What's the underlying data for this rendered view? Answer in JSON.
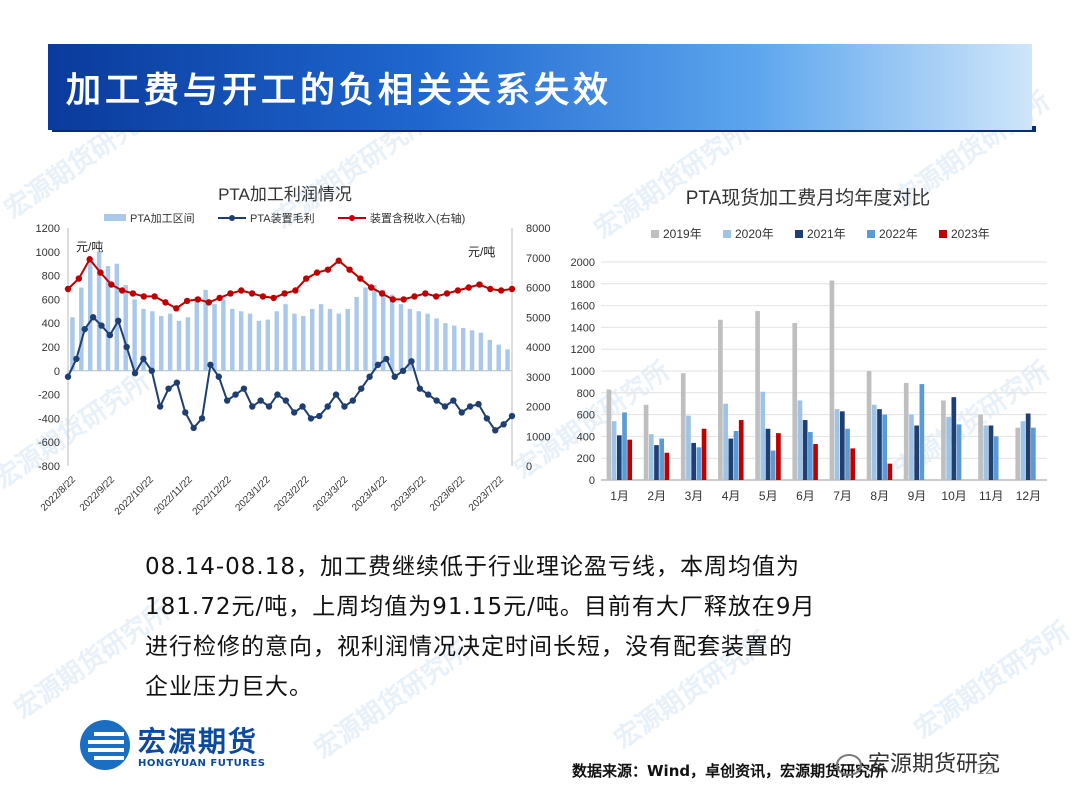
{
  "header": {
    "title": "加工费与开工的负相关关系失效"
  },
  "body": {
    "lines": [
      "08.14-08.18，加工费继续低于行业理论盈亏线，本周均值为",
      "181.72元/吨，上周均值为91.15元/吨。目前有大厂释放在9月",
      "进行检修的意向，视利润情况决定时间长短，没有配套装置的",
      "企业压力巨大。"
    ]
  },
  "footer": {
    "logo_name": "宏源期货",
    "logo_sub": "HONGYUAN FUTURES",
    "source": "数据来源：Wind，卓创资讯，宏源期货研究所",
    "page": "12",
    "wechat": "宏源期货研究"
  },
  "watermark": "宏源期货研究所",
  "colors": {
    "bar_blue": "#a9c8ea",
    "margin_navy": "#1f3f73",
    "income_red": "#c00000",
    "y2019": "#bfbfbf",
    "y2020": "#9dc3e6",
    "y2021": "#1f3f73",
    "y2022": "#5b9bd5",
    "y2023": "#c00000"
  },
  "chart_data": [
    {
      "type": "line",
      "title": "PTA加工利润情况",
      "legend": [
        "PTA加工区间",
        "PTA装置毛利",
        "装置含税收入(右轴)"
      ],
      "legend_position": "top",
      "left_unit": "元/吨",
      "right_unit": "元/吨",
      "y_left_ticks": [
        1200,
        1000,
        800,
        600,
        400,
        200,
        0,
        -200,
        -400,
        -600,
        -800
      ],
      "y_right_ticks": [
        8000,
        7000,
        6000,
        5000,
        4000,
        3000,
        2000,
        1000,
        0
      ],
      "ylim_left": [
        -800,
        1200
      ],
      "ylim_right": [
        0,
        8000
      ],
      "x_ticks": [
        "2022/8/22",
        "2022/9/22",
        "2022/10/22",
        "2022/11/22",
        "2022/12/22",
        "2023/1/22",
        "2023/2/22",
        "2023/3/22",
        "2023/4/22",
        "2023/5/22",
        "2023/6/22",
        "2023/7/22"
      ],
      "grid": false,
      "series": [
        {
          "name": "PTA加工区间",
          "type": "bar",
          "values": [
            450,
            700,
            950,
            1000,
            880,
            900,
            720,
            600,
            520,
            500,
            460,
            480,
            420,
            450,
            620,
            680,
            560,
            600,
            520,
            500,
            480,
            420,
            430,
            500,
            560,
            480,
            460,
            520,
            560,
            520,
            480,
            520,
            620,
            700,
            720,
            680,
            640,
            560,
            520,
            500,
            480,
            440,
            400,
            380,
            360,
            340,
            320,
            260,
            220,
            180
          ]
        },
        {
          "name": "PTA装置毛利",
          "type": "line",
          "values": [
            -50,
            100,
            350,
            450,
            380,
            300,
            420,
            200,
            -20,
            100,
            0,
            -300,
            -150,
            -100,
            -350,
            -480,
            -400,
            50,
            -50,
            -250,
            -200,
            -150,
            -300,
            -250,
            -300,
            -200,
            -250,
            -350,
            -300,
            -400,
            -380,
            -300,
            -200,
            -300,
            -250,
            -150,
            -50,
            50,
            100,
            -50,
            0,
            80,
            -150,
            -200,
            -250,
            -300,
            -250,
            -350,
            -300,
            -280,
            -400,
            -500,
            -450,
            -380
          ]
        },
        {
          "name": "装置含税收入(右轴)",
          "type": "line",
          "values": [
            5950,
            6300,
            6950,
            6500,
            6100,
            5900,
            5800,
            5700,
            5700,
            5500,
            5300,
            5550,
            5600,
            5500,
            5650,
            5800,
            5900,
            5800,
            5700,
            5650,
            5800,
            5900,
            6300,
            6500,
            6600,
            6900,
            6600,
            6300,
            6000,
            5800,
            5600,
            5600,
            5700,
            5800,
            5700,
            5800,
            5900,
            6000,
            6100,
            5950,
            5900,
            5950
          ]
        }
      ]
    },
    {
      "type": "bar",
      "title": "PTA现货加工费月均年度对比",
      "legend_position": "top",
      "categories": [
        "1月",
        "2月",
        "3月",
        "4月",
        "5月",
        "6月",
        "7月",
        "8月",
        "9月",
        "10月",
        "11月",
        "12月"
      ],
      "ylim": [
        0,
        2000
      ],
      "y_ticks": [
        2000,
        1800,
        1600,
        1400,
        1200,
        1000,
        800,
        600,
        400,
        200,
        0
      ],
      "grid": true,
      "series": [
        {
          "name": "2019年",
          "values": [
            830,
            690,
            980,
            1470,
            1550,
            1440,
            1830,
            1000,
            890,
            730,
            600,
            480
          ]
        },
        {
          "name": "2020年",
          "values": [
            540,
            420,
            590,
            700,
            810,
            730,
            650,
            690,
            600,
            580,
            500,
            540
          ]
        },
        {
          "name": "2021年",
          "values": [
            410,
            320,
            340,
            380,
            470,
            550,
            630,
            650,
            500,
            760,
            500,
            610
          ]
        },
        {
          "name": "2022年",
          "values": [
            620,
            380,
            300,
            450,
            270,
            440,
            470,
            600,
            880,
            510,
            400,
            480
          ]
        },
        {
          "name": "2023年",
          "values": [
            370,
            250,
            470,
            550,
            430,
            330,
            290,
            150,
            null,
            null,
            null,
            null
          ]
        }
      ]
    }
  ]
}
